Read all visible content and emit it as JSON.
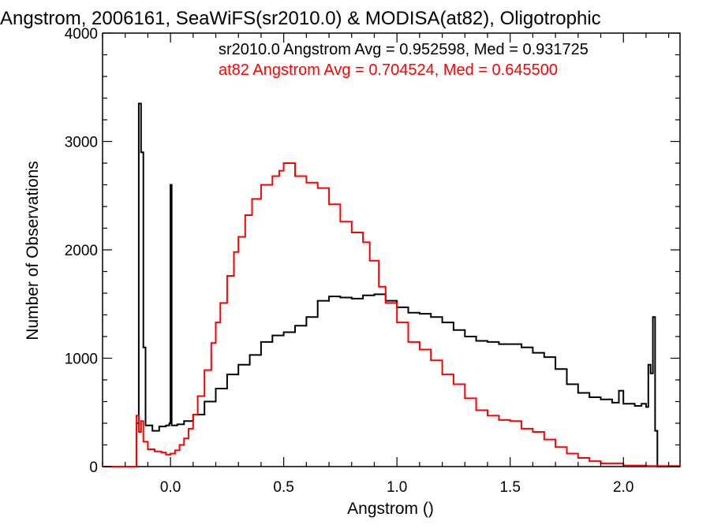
{
  "chart_data": {
    "type": "line",
    "title": "Angstrom, 2006161, SeaWiFS(sr2010.0) & MODISA(at82), Oligotrophic",
    "xlabel": "Angstrom ()",
    "ylabel": "Number of Observations",
    "xlim": [
      -0.3,
      2.25
    ],
    "ylim": [
      0,
      4000
    ],
    "x_ticks": [
      {
        "value": 0.0,
        "label": "0.0"
      },
      {
        "value": 0.5,
        "label": "0.5"
      },
      {
        "value": 1.0,
        "label": "1.0"
      },
      {
        "value": 1.5,
        "label": "1.5"
      },
      {
        "value": 2.0,
        "label": "2.0"
      }
    ],
    "y_ticks": [
      {
        "value": 0,
        "label": "0"
      },
      {
        "value": 1000,
        "label": "1000"
      },
      {
        "value": 2000,
        "label": "2000"
      },
      {
        "value": 3000,
        "label": "3000"
      },
      {
        "value": 4000,
        "label": "4000"
      }
    ],
    "grid": false,
    "legend_position": "top-right",
    "series": [
      {
        "name": "sr2010.0",
        "label": "sr2010.0 Angstrom Avg = 0.952598, Med = 0.931725",
        "color": "#000000",
        "points": [
          [
            -0.3,
            0
          ],
          [
            -0.16,
            0
          ],
          [
            -0.15,
            400
          ],
          [
            -0.14,
            3350
          ],
          [
            -0.13,
            2900
          ],
          [
            -0.12,
            1100
          ],
          [
            -0.11,
            380
          ],
          [
            -0.08,
            330
          ],
          [
            -0.05,
            370
          ],
          [
            -0.02,
            380
          ],
          [
            -0.005,
            400
          ],
          [
            0.0,
            2600
          ],
          [
            0.005,
            380
          ],
          [
            0.03,
            390
          ],
          [
            0.06,
            420
          ],
          [
            0.1,
            480
          ],
          [
            0.15,
            600
          ],
          [
            0.2,
            720
          ],
          [
            0.25,
            850
          ],
          [
            0.3,
            940
          ],
          [
            0.35,
            1030
          ],
          [
            0.4,
            1150
          ],
          [
            0.45,
            1210
          ],
          [
            0.5,
            1240
          ],
          [
            0.55,
            1300
          ],
          [
            0.6,
            1380
          ],
          [
            0.65,
            1530
          ],
          [
            0.7,
            1570
          ],
          [
            0.75,
            1560
          ],
          [
            0.8,
            1550
          ],
          [
            0.85,
            1580
          ],
          [
            0.9,
            1590
          ],
          [
            0.95,
            1530
          ],
          [
            1.0,
            1470
          ],
          [
            1.05,
            1420
          ],
          [
            1.1,
            1410
          ],
          [
            1.15,
            1380
          ],
          [
            1.2,
            1330
          ],
          [
            1.25,
            1260
          ],
          [
            1.3,
            1200
          ],
          [
            1.35,
            1160
          ],
          [
            1.4,
            1150
          ],
          [
            1.45,
            1130
          ],
          [
            1.5,
            1130
          ],
          [
            1.55,
            1100
          ],
          [
            1.6,
            1050
          ],
          [
            1.65,
            1010
          ],
          [
            1.7,
            900
          ],
          [
            1.75,
            760
          ],
          [
            1.8,
            680
          ],
          [
            1.85,
            640
          ],
          [
            1.9,
            620
          ],
          [
            1.95,
            590
          ],
          [
            1.98,
            700
          ],
          [
            2.0,
            580
          ],
          [
            2.05,
            560
          ],
          [
            2.08,
            580
          ],
          [
            2.1,
            550
          ],
          [
            2.11,
            940
          ],
          [
            2.12,
            860
          ],
          [
            2.13,
            1380
          ],
          [
            2.14,
            330
          ],
          [
            2.15,
            0
          ],
          [
            2.25,
            0
          ]
        ]
      },
      {
        "name": "at82",
        "label": "at82 Angstrom Avg = 0.704524, Med = 0.645500",
        "color": "#ff0000",
        "points": [
          [
            -0.3,
            0
          ],
          [
            -0.16,
            0
          ],
          [
            -0.15,
            470
          ],
          [
            -0.14,
            320
          ],
          [
            -0.13,
            420
          ],
          [
            -0.12,
            230
          ],
          [
            -0.1,
            160
          ],
          [
            -0.07,
            140
          ],
          [
            -0.04,
            130
          ],
          [
            -0.02,
            110
          ],
          [
            0.0,
            120
          ],
          [
            0.02,
            150
          ],
          [
            0.04,
            200
          ],
          [
            0.06,
            260
          ],
          [
            0.08,
            350
          ],
          [
            0.1,
            480
          ],
          [
            0.12,
            650
          ],
          [
            0.15,
            890
          ],
          [
            0.18,
            1140
          ],
          [
            0.2,
            1330
          ],
          [
            0.22,
            1510
          ],
          [
            0.25,
            1760
          ],
          [
            0.28,
            1980
          ],
          [
            0.3,
            2120
          ],
          [
            0.33,
            2320
          ],
          [
            0.36,
            2470
          ],
          [
            0.4,
            2600
          ],
          [
            0.45,
            2680
          ],
          [
            0.48,
            2730
          ],
          [
            0.5,
            2800
          ],
          [
            0.55,
            2680
          ],
          [
            0.6,
            2620
          ],
          [
            0.65,
            2570
          ],
          [
            0.7,
            2420
          ],
          [
            0.75,
            2260
          ],
          [
            0.8,
            2160
          ],
          [
            0.85,
            2070
          ],
          [
            0.88,
            1900
          ],
          [
            0.92,
            1660
          ],
          [
            0.95,
            1510
          ],
          [
            1.0,
            1330
          ],
          [
            1.05,
            1150
          ],
          [
            1.1,
            1080
          ],
          [
            1.15,
            980
          ],
          [
            1.2,
            850
          ],
          [
            1.25,
            760
          ],
          [
            1.3,
            630
          ],
          [
            1.35,
            520
          ],
          [
            1.4,
            470
          ],
          [
            1.45,
            430
          ],
          [
            1.5,
            420
          ],
          [
            1.55,
            350
          ],
          [
            1.6,
            320
          ],
          [
            1.65,
            250
          ],
          [
            1.7,
            180
          ],
          [
            1.75,
            120
          ],
          [
            1.8,
            80
          ],
          [
            1.85,
            50
          ],
          [
            1.9,
            30
          ],
          [
            2.0,
            10
          ],
          [
            2.1,
            5
          ],
          [
            2.25,
            0
          ]
        ]
      }
    ]
  }
}
